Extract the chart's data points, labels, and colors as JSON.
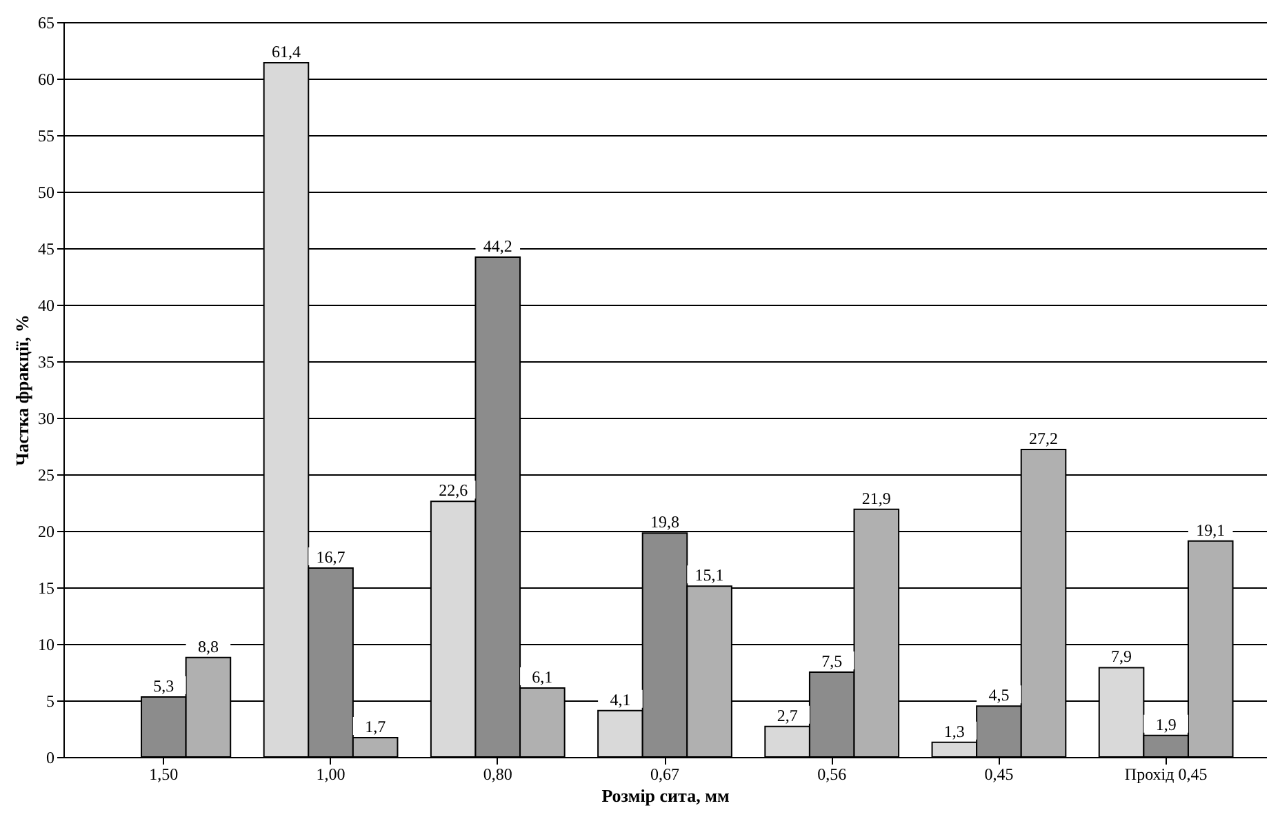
{
  "chart_data": {
    "type": "bar",
    "xlabel": "Розмір сита, мм",
    "ylabel": "Частка фракції, %",
    "categories": [
      "1,50",
      "1,00",
      "0,80",
      "0,67",
      "0,56",
      "0,45",
      "Прохід 0,45"
    ],
    "series": [
      {
        "color": "#d9d9d9",
        "values": [
          null,
          61.4,
          22.6,
          4.1,
          2.7,
          1.3,
          7.9
        ],
        "value_labels": [
          null,
          "61,4",
          "22,6",
          "4,1",
          "2,7",
          "1,3",
          "7,9"
        ]
      },
      {
        "color": "#8c8c8c",
        "values": [
          5.3,
          16.7,
          44.2,
          19.8,
          7.5,
          4.5,
          1.9
        ],
        "value_labels": [
          "5,3",
          "16,7",
          "44,2",
          "19,8",
          "7,5",
          "4,5",
          "1,9"
        ]
      },
      {
        "color": "#b0b0b0",
        "values": [
          8.8,
          1.7,
          6.1,
          15.1,
          21.9,
          27.2,
          19.1
        ],
        "value_labels": [
          "8,8",
          "1,7",
          "6,1",
          "15,1",
          "21,9",
          "27,2",
          "19,1"
        ]
      }
    ],
    "ylim": [
      0,
      65
    ],
    "yticks": [
      0,
      5,
      10,
      15,
      20,
      25,
      30,
      35,
      40,
      45,
      50,
      55,
      60,
      65
    ],
    "grid": "y",
    "legend": false
  }
}
